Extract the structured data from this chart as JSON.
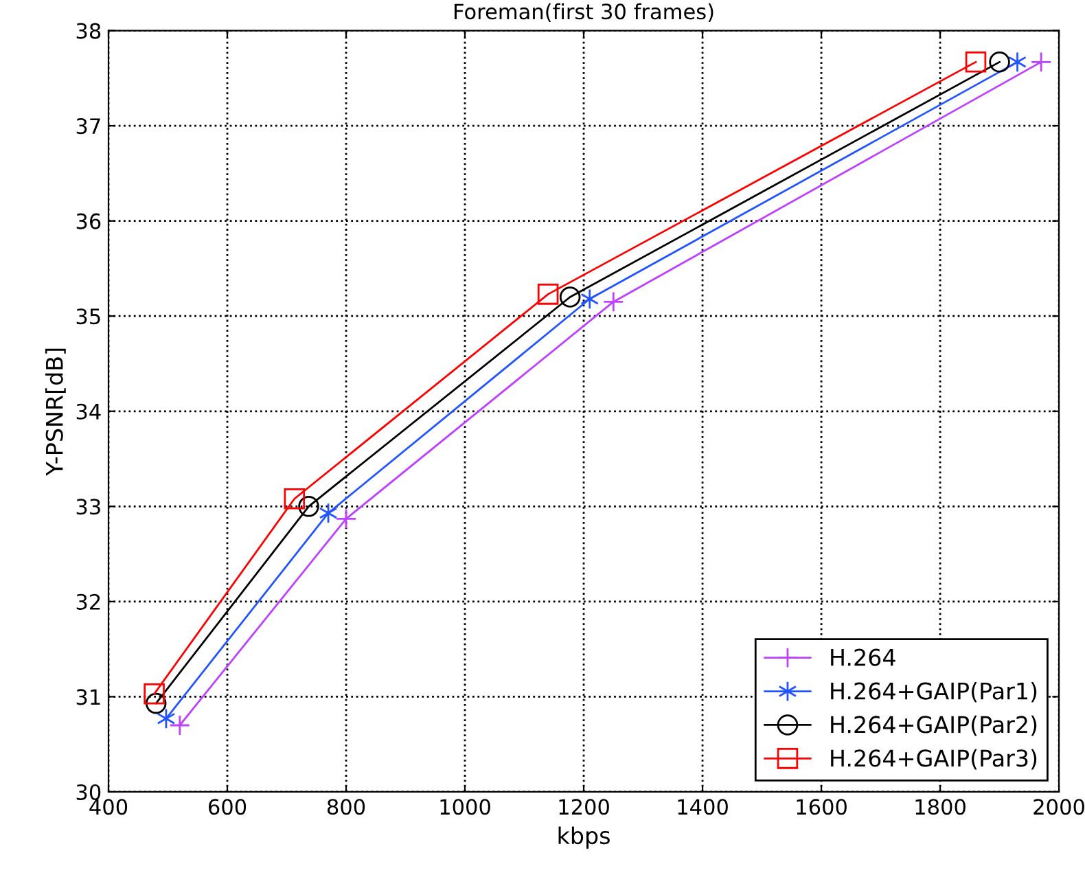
{
  "chart_data": {
    "type": "line",
    "title": "Foreman(first 30 frames)",
    "xlabel": "kbps",
    "ylabel": "Y-PSNR[dB]",
    "xlim": [
      400,
      2000
    ],
    "xticks": [
      400,
      600,
      800,
      1000,
      1200,
      1400,
      1600,
      1800,
      2000
    ],
    "ylim": [
      30,
      38
    ],
    "yticks": [
      30,
      31,
      32,
      33,
      34,
      35,
      36,
      37,
      38
    ],
    "grid": true,
    "legend": "bottom right",
    "line_style": "solid",
    "series": [
      {
        "name": "H.264",
        "color": "#bf40ff",
        "marker": "plus",
        "x": [
          520,
          800,
          1250,
          1970
        ],
        "values": [
          30.7,
          32.87,
          35.15,
          37.67
        ]
      },
      {
        "name": "H.264+GAIP(Par1)",
        "color": "#2255ff",
        "marker": "cross",
        "x": [
          497,
          770,
          1210,
          1930
        ],
        "values": [
          30.77,
          32.93,
          35.18,
          37.67
        ]
      },
      {
        "name": "H.264+GAIP(Par2)",
        "color": "#000000",
        "marker": "circle",
        "x": [
          480,
          737,
          1177,
          1900
        ],
        "values": [
          30.93,
          33.0,
          35.2,
          37.67
        ]
      },
      {
        "name": "H.264+GAIP(Par3)",
        "color": "#ff0000",
        "marker": "square",
        "x": [
          477,
          713,
          1140,
          1860
        ],
        "values": [
          31.03,
          33.08,
          35.23,
          37.67
        ]
      }
    ]
  }
}
